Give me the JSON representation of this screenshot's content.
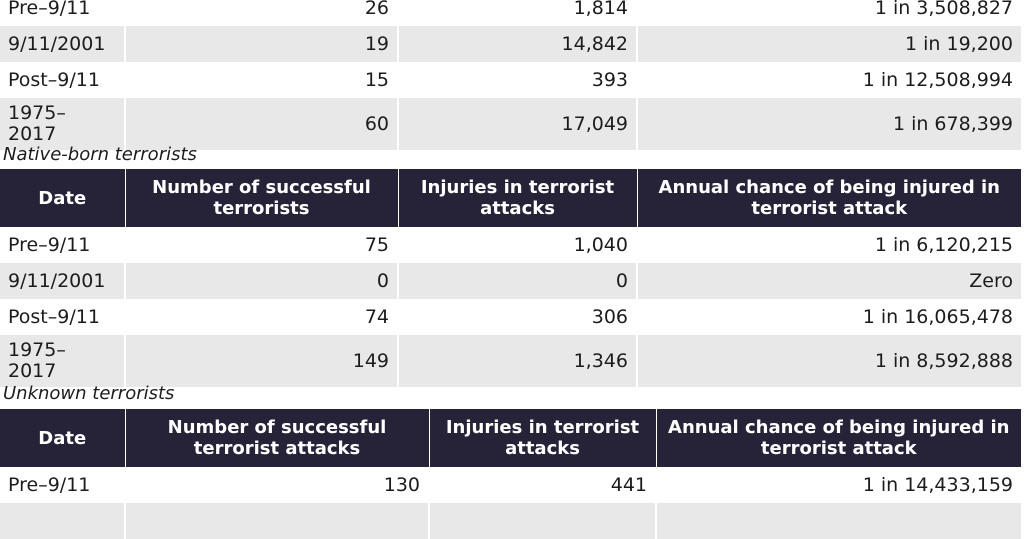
{
  "tables": [
    {
      "caption": "",
      "headers": [],
      "rows": [
        {
          "date": "Pre–9/11",
          "count": "26",
          "injuries": "1,814",
          "chance": "1 in 3,508,827"
        },
        {
          "date": "9/11/2001",
          "count": "19",
          "injuries": "14,842",
          "chance": "1 in 19,200"
        },
        {
          "date": "Post–9/11",
          "count": "15",
          "injuries": "393",
          "chance": "1 in 12,508,994"
        },
        {
          "date": "1975– 2017",
          "count": "60",
          "injuries": "17,049",
          "chance": "1 in 678,399"
        }
      ]
    },
    {
      "caption": "Native-born terrorists",
      "headers": [
        "Date",
        "Number of successful terrorists",
        "Injuries in terrorist attacks",
        "Annual chance of being injured in terrorist attack"
      ],
      "rows": [
        {
          "date": "Pre–9/11",
          "count": "75",
          "injuries": "1,040",
          "chance": "1 in 6,120,215"
        },
        {
          "date": "9/11/2001",
          "count": "0",
          "injuries": "0",
          "chance": "Zero"
        },
        {
          "date": "Post–9/11",
          "count": "74",
          "injuries": "306",
          "chance": "1 in 16,065,478"
        },
        {
          "date": "1975– 2017",
          "count": "149",
          "injuries": "1,346",
          "chance": "1 in 8,592,888"
        }
      ]
    },
    {
      "caption": "Unknown terrorists",
      "headers": [
        "Date",
        "Number of successful terrorist attacks",
        "Injuries in terrorist attacks",
        "Annual chance of being injured in terrorist attack"
      ],
      "rows": [
        {
          "date": "Pre–9/11",
          "count": "130",
          "injuries": "441",
          "chance": "1 in 14,433,159"
        }
      ]
    }
  ],
  "colors": {
    "header_bg": "#262339",
    "stripe": "#e8e8e8"
  }
}
